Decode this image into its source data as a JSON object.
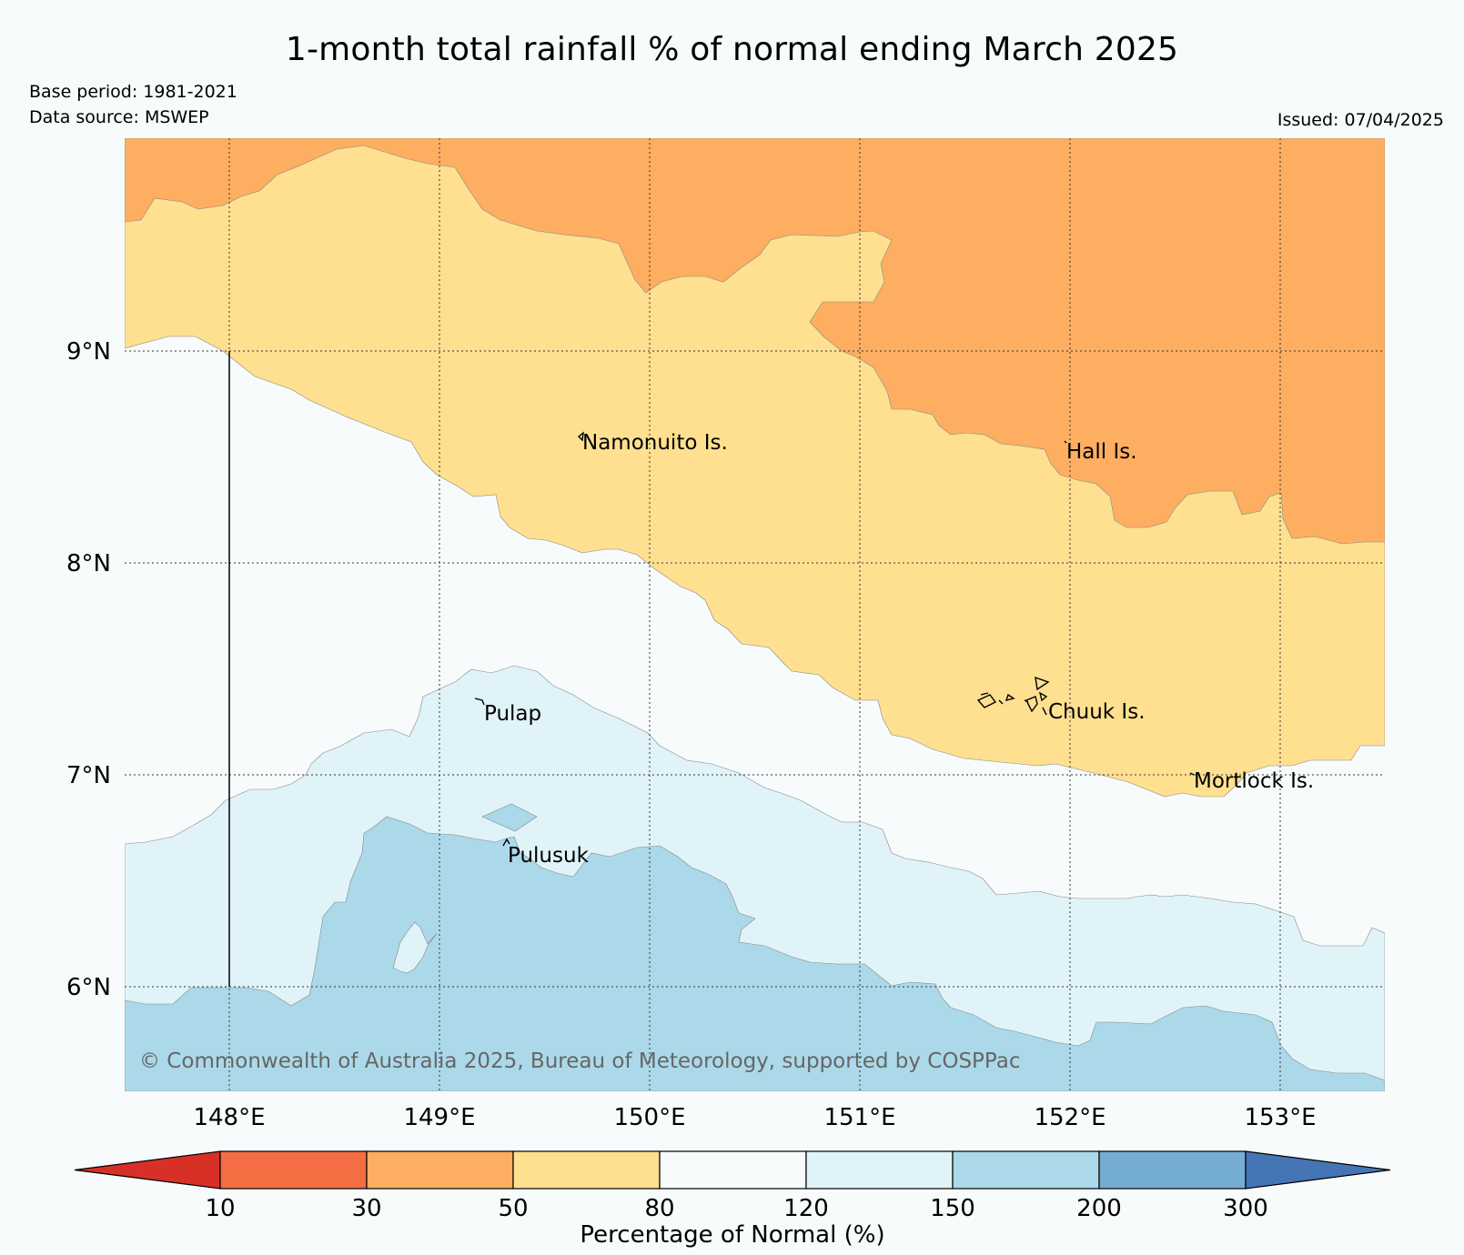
{
  "header": {
    "title": "1-month total rainfall % of normal ending March 2025",
    "base_period": "Base period: 1981-2021",
    "data_source": "Data source: MSWEP",
    "issued": "Issued: 07/04/2025"
  },
  "map": {
    "lat_labels": [
      "9°N",
      "8°N",
      "7°N",
      "6°N"
    ],
    "lon_labels": [
      "148°E",
      "149°E",
      "150°E",
      "151°E",
      "152°E",
      "153°E"
    ],
    "places": {
      "namonuito": "Namonuito Is.",
      "hall": "Hall Is.",
      "pulap": "Pulap",
      "chuuk": "Chuuk Is.",
      "mortlock": "Mortlock Is.",
      "pulusuk": "Pulusuk"
    },
    "copyright": "© Commonwealth of Australia 2025, Bureau of Meteorology, supported by COSPPac"
  },
  "colorbar": {
    "title": "Percentage of Normal (%)",
    "ticks": [
      "10",
      "30",
      "50",
      "80",
      "120",
      "150",
      "200",
      "300"
    ],
    "colors": [
      "#d73027",
      "#f46d43",
      "#fdae61",
      "#fee090",
      "#f7fbfc",
      "#e0f3f8",
      "#abd9e9",
      "#74add1",
      "#4575b4"
    ]
  }
}
